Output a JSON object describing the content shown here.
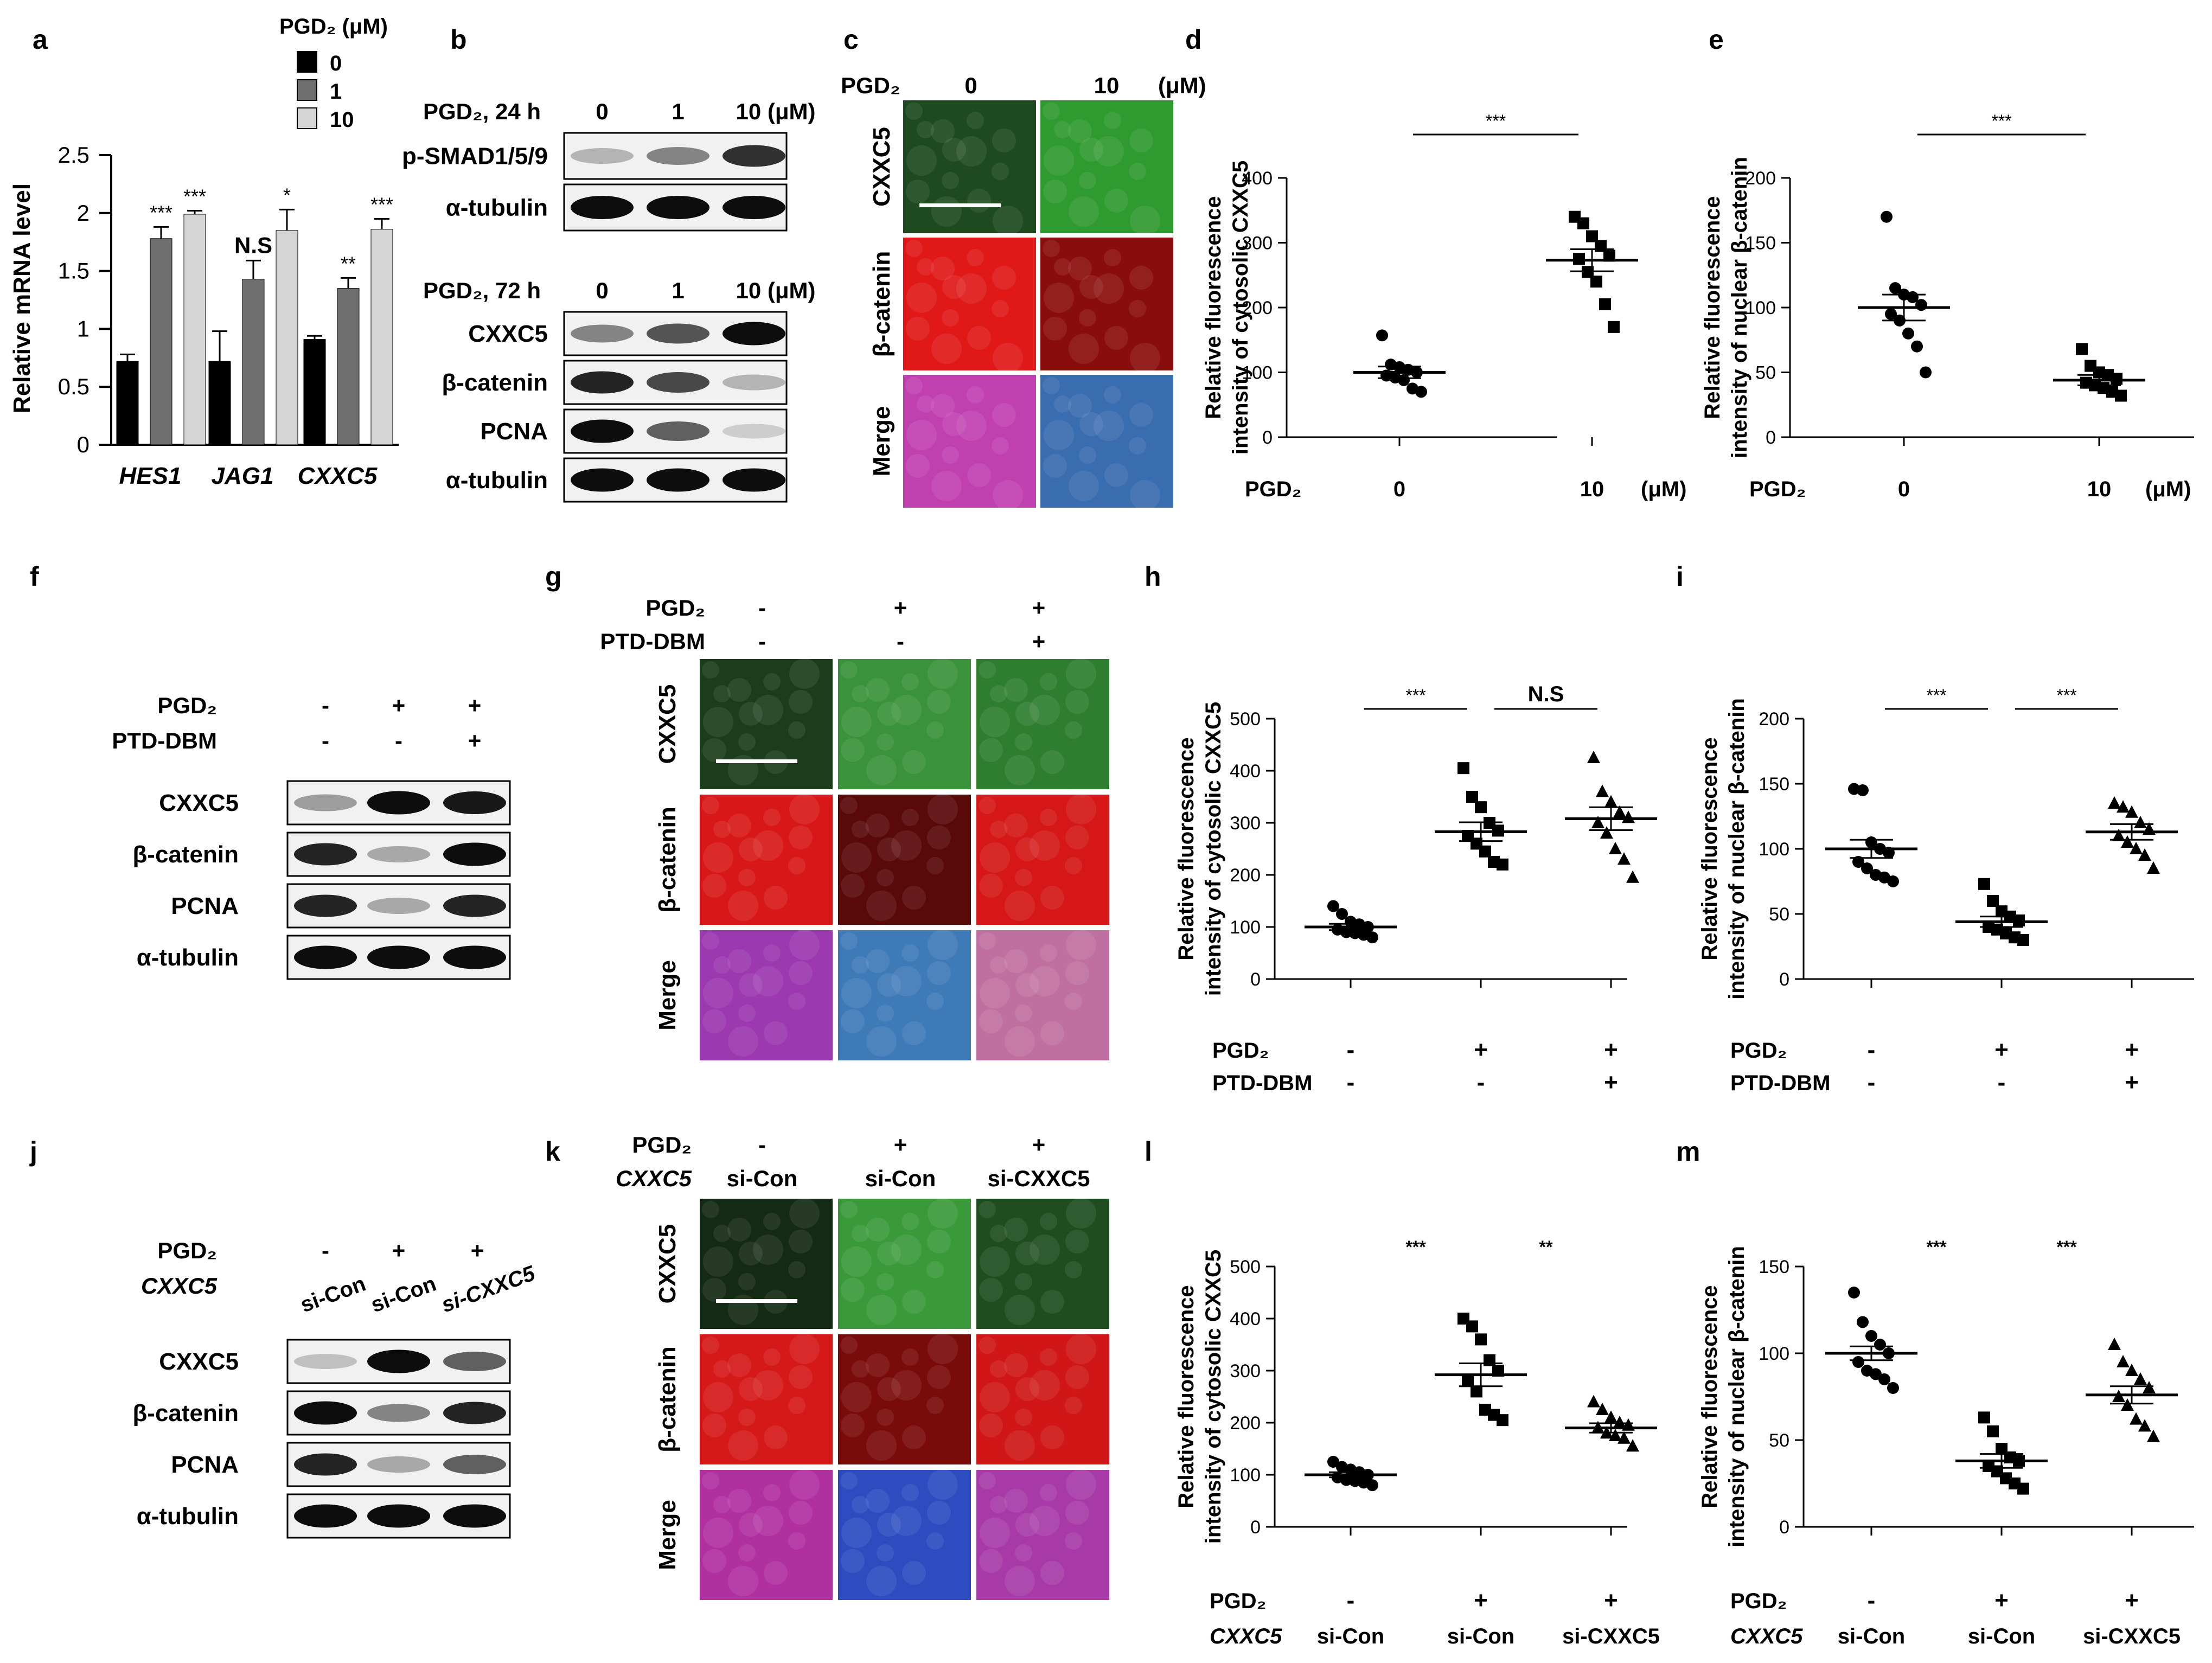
{
  "figure": {
    "panel_letters": [
      "a",
      "b",
      "c",
      "d",
      "e",
      "f",
      "g",
      "h",
      "i",
      "j",
      "k",
      "l",
      "m"
    ],
    "sig": {
      "three": "***",
      "two": "**",
      "one": "*",
      "ns": "N.S"
    },
    "units": {
      "uM_paren": "(μM)",
      "pgd2": "PGD",
      "pgd2_sub": "2",
      "pgd2_uM": "PGD₂ (μM)"
    },
    "pm": {
      "minus": "-",
      "plus": "+"
    }
  },
  "chart_data": [
    {
      "id": "a",
      "type": "bar",
      "legend_title": "PGD₂ (μM)",
      "categories": [
        "HES1",
        "JAG1",
        "CXXC5"
      ],
      "ylabel": "Relative mRNA level",
      "ylim": [
        0,
        2.5
      ],
      "yticks": [
        "0",
        "0.5",
        "1",
        "1.5",
        "2",
        "2.5"
      ],
      "series": [
        {
          "name": "0",
          "color": "#000000",
          "values": [
            0.72,
            0.72,
            0.91
          ],
          "err": [
            0.06,
            0.26,
            0.03
          ]
        },
        {
          "name": "1",
          "color": "#6f6f6f",
          "values": [
            1.78,
            1.43,
            1.35
          ],
          "err": [
            0.1,
            0.16,
            0.09
          ]
        },
        {
          "name": "10",
          "color": "#d6d6d6",
          "values": [
            1.99,
            1.85,
            1.86
          ],
          "err": [
            0.03,
            0.18,
            0.09
          ]
        }
      ],
      "annotations": [
        [
          "***",
          "***"
        ],
        [
          "N.S",
          "*"
        ],
        [
          "**",
          "***"
        ]
      ]
    },
    {
      "id": "d",
      "type": "scatter",
      "ylabel": [
        "Relative fluorescence",
        "intensity of cytosolic CXXC5"
      ],
      "ylim": [
        0,
        400
      ],
      "yticks": [
        "0",
        "100",
        "200",
        "300",
        "400"
      ],
      "groups": [
        {
          "label": "0",
          "marker": "circle",
          "mean": 100,
          "sem": 9,
          "values": [
            157,
            112,
            108,
            104,
            100,
            95,
            92,
            88,
            75,
            70
          ]
        },
        {
          "label": "10",
          "marker": "square",
          "mean": 273,
          "sem": 17,
          "values": [
            340,
            330,
            310,
            295,
            280,
            275,
            255,
            240,
            205,
            170
          ]
        }
      ],
      "xrow_label": "PGD₂",
      "unit": "(μM)",
      "comparisons": [
        {
          "from": 0,
          "to": 1,
          "label": "***"
        }
      ]
    },
    {
      "id": "e",
      "type": "scatter",
      "ylabel": [
        "Relative fluorescence",
        "intensity of nuclear β-catenin"
      ],
      "ylim": [
        0,
        200
      ],
      "yticks": [
        "0",
        "50",
        "100",
        "150",
        "200"
      ],
      "groups": [
        {
          "label": "0",
          "marker": "circle",
          "mean": 100,
          "sem": 10,
          "values": [
            170,
            115,
            110,
            108,
            102,
            95,
            90,
            80,
            70,
            50
          ]
        },
        {
          "label": "10",
          "marker": "square",
          "mean": 44,
          "sem": 4,
          "values": [
            68,
            55,
            50,
            48,
            45,
            42,
            40,
            38,
            35,
            32
          ]
        }
      ],
      "xrow_label": "PGD₂",
      "unit": "(μM)",
      "comparisons": [
        {
          "from": 0,
          "to": 1,
          "label": "***"
        }
      ]
    },
    {
      "id": "h",
      "type": "scatter",
      "ylabel": [
        "Relative fluorescence",
        "intensity of cytosolic CXXC5"
      ],
      "ylim": [
        0,
        500
      ],
      "yticks": [
        "0",
        "100",
        "200",
        "300",
        "400",
        "500"
      ],
      "groups": [
        {
          "marker": "circle",
          "mean": 100,
          "sem": 6,
          "values": [
            140,
            125,
            110,
            105,
            100,
            95,
            90,
            88,
            85,
            80
          ]
        },
        {
          "marker": "square",
          "mean": 283,
          "sem": 18,
          "values": [
            405,
            350,
            330,
            300,
            285,
            275,
            260,
            245,
            225,
            220
          ]
        },
        {
          "marker": "triangle",
          "mean": 308,
          "sem": 22,
          "values": [
            425,
            360,
            340,
            320,
            310,
            300,
            280,
            250,
            230,
            195
          ]
        }
      ],
      "xrows": [
        {
          "label": "PGD₂",
          "values": [
            "-",
            "+",
            "+"
          ]
        },
        {
          "label": "PTD-DBM",
          "values": [
            "-",
            "-",
            "+"
          ]
        }
      ],
      "comparisons": [
        {
          "from": 0,
          "to": 1,
          "label": "***"
        },
        {
          "from": 1,
          "to": 2,
          "label": "N.S"
        }
      ]
    },
    {
      "id": "i",
      "type": "scatter",
      "ylabel": [
        "Relative fluorescence",
        "intensity of nuclear β-catenin"
      ],
      "ylim": [
        0,
        200
      ],
      "yticks": [
        "0",
        "50",
        "100",
        "150",
        "200"
      ],
      "groups": [
        {
          "marker": "circle",
          "mean": 100,
          "sem": 7,
          "values": [
            146,
            145,
            105,
            100,
            97,
            90,
            85,
            80,
            78,
            75
          ]
        },
        {
          "marker": "square",
          "mean": 44,
          "sem": 4,
          "values": [
            73,
            60,
            52,
            48,
            45,
            40,
            38,
            35,
            32,
            30
          ]
        },
        {
          "marker": "triangle",
          "mean": 113,
          "sem": 6,
          "values": [
            135,
            132,
            128,
            120,
            115,
            110,
            105,
            100,
            95,
            85
          ]
        }
      ],
      "xrows": [
        {
          "label": "PGD₂",
          "values": [
            "-",
            "+",
            "+"
          ]
        },
        {
          "label": "PTD-DBM",
          "values": [
            "-",
            "-",
            "+"
          ]
        }
      ],
      "comparisons": [
        {
          "from": 0,
          "to": 1,
          "label": "***"
        },
        {
          "from": 1,
          "to": 2,
          "label": "***"
        }
      ]
    },
    {
      "id": "l",
      "type": "scatter",
      "ylabel": [
        "Relative fluorescence",
        "intensity of cytosolic CXXC5"
      ],
      "ylim": [
        0,
        500
      ],
      "yticks": [
        "0",
        "100",
        "200",
        "300",
        "400",
        "500"
      ],
      "groups": [
        {
          "marker": "circle",
          "mean": 100,
          "sem": 5,
          "values": [
            125,
            115,
            110,
            105,
            100,
            95,
            90,
            88,
            85,
            80
          ]
        },
        {
          "marker": "square",
          "mean": 292,
          "sem": 22,
          "values": [
            400,
            385,
            360,
            320,
            300,
            280,
            260,
            225,
            215,
            205
          ]
        },
        {
          "marker": "triangle",
          "mean": 190,
          "sem": 9,
          "values": [
            240,
            225,
            210,
            200,
            195,
            190,
            180,
            175,
            170,
            155
          ]
        }
      ],
      "xrows": [
        {
          "label": "PGD₂",
          "values": [
            "-",
            "+",
            "+"
          ]
        },
        {
          "label": "CXXC5",
          "italic": true,
          "values": [
            "si-Con",
            "si-Con",
            "si-CXXC5"
          ]
        }
      ],
      "comparisons": [
        {
          "at": 0.5,
          "label": "***"
        },
        {
          "at": 1.5,
          "label": "**"
        }
      ]
    },
    {
      "id": "m",
      "type": "scatter",
      "ylabel": [
        "Relative fluorescence",
        "intensity of nuclear β-catenin"
      ],
      "ylim": [
        0,
        150
      ],
      "yticks": [
        "0",
        "50",
        "100",
        "150"
      ],
      "groups": [
        {
          "marker": "circle",
          "mean": 100,
          "sem": 4,
          "values": [
            135,
            118,
            110,
            105,
            100,
            95,
            90,
            88,
            85,
            80
          ]
        },
        {
          "marker": "square",
          "mean": 38,
          "sem": 4,
          "values": [
            63,
            55,
            45,
            40,
            38,
            35,
            32,
            28,
            25,
            22
          ]
        },
        {
          "marker": "triangle",
          "mean": 76,
          "sem": 5,
          "values": [
            105,
            95,
            90,
            85,
            80,
            75,
            70,
            62,
            58,
            52
          ]
        }
      ],
      "xrows": [
        {
          "label": "PGD₂",
          "values": [
            "-",
            "+",
            "+"
          ]
        },
        {
          "label": "CXXC5",
          "italic": true,
          "values": [
            "si-Con",
            "si-Con",
            "si-CXXC5"
          ]
        }
      ],
      "comparisons": [
        {
          "at": 0.5,
          "label": "***"
        },
        {
          "at": 1.5,
          "label": "***"
        }
      ]
    }
  ],
  "blots": {
    "b1": {
      "header": "PGD₂, 24 h",
      "cols": [
        "0",
        "1",
        "10 (μM)"
      ],
      "rows": [
        "p-SMAD1/5/9",
        "α-tubulin"
      ],
      "intensity": [
        [
          0.25,
          0.45,
          0.8
        ],
        [
          0.95,
          0.95,
          0.95
        ]
      ]
    },
    "b2": {
      "header": "PGD₂, 72 h",
      "cols": [
        "0",
        "1",
        "10 (μM)"
      ],
      "rows": [
        "CXXC5",
        "β-catenin",
        "PCNA",
        "α-tubulin"
      ],
      "intensity": [
        [
          0.45,
          0.65,
          0.95
        ],
        [
          0.85,
          0.7,
          0.25
        ],
        [
          0.95,
          0.6,
          0.15
        ],
        [
          0.95,
          0.95,
          0.95
        ]
      ]
    },
    "f": {
      "cond": [
        {
          "label": "PGD₂",
          "values": [
            "-",
            "+",
            "+"
          ]
        },
        {
          "label": "PTD-DBM",
          "values": [
            "-",
            "-",
            "+"
          ]
        }
      ],
      "rows": [
        "CXXC5",
        "β-catenin",
        "PCNA",
        "α-tubulin"
      ],
      "intensity": [
        [
          0.35,
          0.95,
          0.9
        ],
        [
          0.85,
          0.3,
          0.95
        ],
        [
          0.85,
          0.3,
          0.85
        ],
        [
          0.95,
          0.95,
          0.95
        ]
      ]
    },
    "j": {
      "cond": [
        {
          "label": "PGD₂",
          "values": [
            "-",
            "+",
            "+"
          ]
        },
        {
          "label": "CXXC5",
          "italic": true,
          "values": [
            "si-Con",
            "si-Con",
            "si-CXXC5"
          ]
        }
      ],
      "rows": [
        "CXXC5",
        "β-catenin",
        "PCNA",
        "α-tubulin"
      ],
      "intensity": [
        [
          0.2,
          0.95,
          0.6
        ],
        [
          0.95,
          0.45,
          0.85
        ],
        [
          0.85,
          0.3,
          0.6
        ],
        [
          0.95,
          0.95,
          0.95
        ]
      ]
    }
  },
  "micro": {
    "c": {
      "rows": [
        "CXXC5",
        "β-catenin",
        "Merge"
      ],
      "cols": [
        "0",
        "10"
      ],
      "top_label": "PGD₂",
      "unit": "(μM)",
      "cells": [
        [
          "#1f4a1f",
          "#2f9a2f"
        ],
        [
          "#e01818",
          "#8a0d0d"
        ],
        [
          "#c040b0",
          "#3a6cb0"
        ]
      ]
    },
    "g": {
      "rows": [
        "CXXC5",
        "β-catenin",
        "Merge"
      ],
      "cond": [
        {
          "label": "PGD₂",
          "values": [
            "-",
            "+",
            "+"
          ]
        },
        {
          "label": "PTD-DBM",
          "values": [
            "-",
            "-",
            "+"
          ]
        }
      ],
      "cells": [
        [
          "#1b3d1b",
          "#3a923a",
          "#2f7e2f"
        ],
        [
          "#d81818",
          "#5a0909",
          "#d51717"
        ],
        [
          "#9c38b0",
          "#3f7ab8",
          "#c070a0"
        ]
      ]
    },
    "k": {
      "rows": [
        "CXXC5",
        "β-catenin",
        "Merge"
      ],
      "cond": [
        {
          "label": "PGD₂",
          "values": [
            "-",
            "+",
            "+"
          ]
        },
        {
          "label": "CXXC5",
          "italic": true,
          "values": [
            "si-Con",
            "si-Con",
            "si-CXXC5"
          ]
        }
      ],
      "cells": [
        [
          "#142a14",
          "#3a9a3a",
          "#1f4d1f"
        ],
        [
          "#d51818",
          "#7a0b0b",
          "#d01616"
        ],
        [
          "#b030a0",
          "#2c4cc0",
          "#a83aa8"
        ]
      ]
    }
  }
}
